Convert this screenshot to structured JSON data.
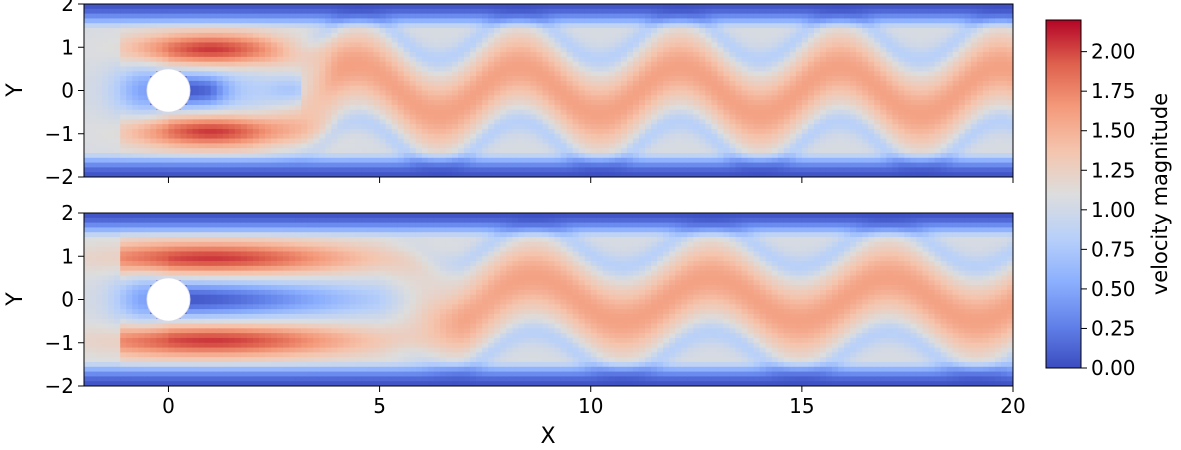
{
  "chart_data": [
    {
      "type": "heatmap",
      "panel": "top",
      "ylabel": "Y",
      "xlabel": "",
      "xlim": [
        -2,
        20
      ],
      "ylim": [
        -2,
        2
      ],
      "x_tick_labels_shown": false,
      "y_ticks": [
        2,
        1,
        0,
        -1,
        -2
      ],
      "y_tick_labels": [
        "2",
        "1",
        "0",
        "−1",
        "−2"
      ],
      "cylinder": {
        "x": 0,
        "y": 0,
        "radius": 0.5
      },
      "wake": {
        "start_x": 3.5,
        "amplitude": 0.55,
        "wavelength": 3.8,
        "phase": 0.4,
        "near_wake_curl": true
      },
      "colormap": "coolwarm"
    },
    {
      "type": "heatmap",
      "panel": "bottom",
      "ylabel": "Y",
      "xlabel": "X",
      "xlim": [
        -2,
        20
      ],
      "ylim": [
        -2,
        2
      ],
      "x_ticks": [
        0,
        5,
        10,
        15,
        20
      ],
      "x_tick_labels": [
        "0",
        "5",
        "10",
        "15",
        "20"
      ],
      "y_ticks": [
        2,
        1,
        0,
        -1,
        -2
      ],
      "y_tick_labels": [
        "2",
        "1",
        "0",
        "−1",
        "−2"
      ],
      "cylinder": {
        "x": 0,
        "y": 0,
        "radius": 0.5
      },
      "wake": {
        "start_x": 6.5,
        "amplitude": 0.5,
        "wavelength": 4.2,
        "phase": 1.2,
        "near_wake_curl": false
      },
      "colormap": "coolwarm"
    }
  ],
  "colorbar": {
    "label": "velocity magnitude",
    "vmin": 0.0,
    "vmax": 2.2,
    "ticks": [
      0.0,
      0.25,
      0.5,
      0.75,
      1.0,
      1.25,
      1.5,
      1.75,
      2.0
    ],
    "tick_labels": [
      "0.00",
      "0.25",
      "0.50",
      "0.75",
      "1.00",
      "1.25",
      "1.50",
      "1.75",
      "2.00"
    ],
    "colormap": "coolwarm"
  }
}
